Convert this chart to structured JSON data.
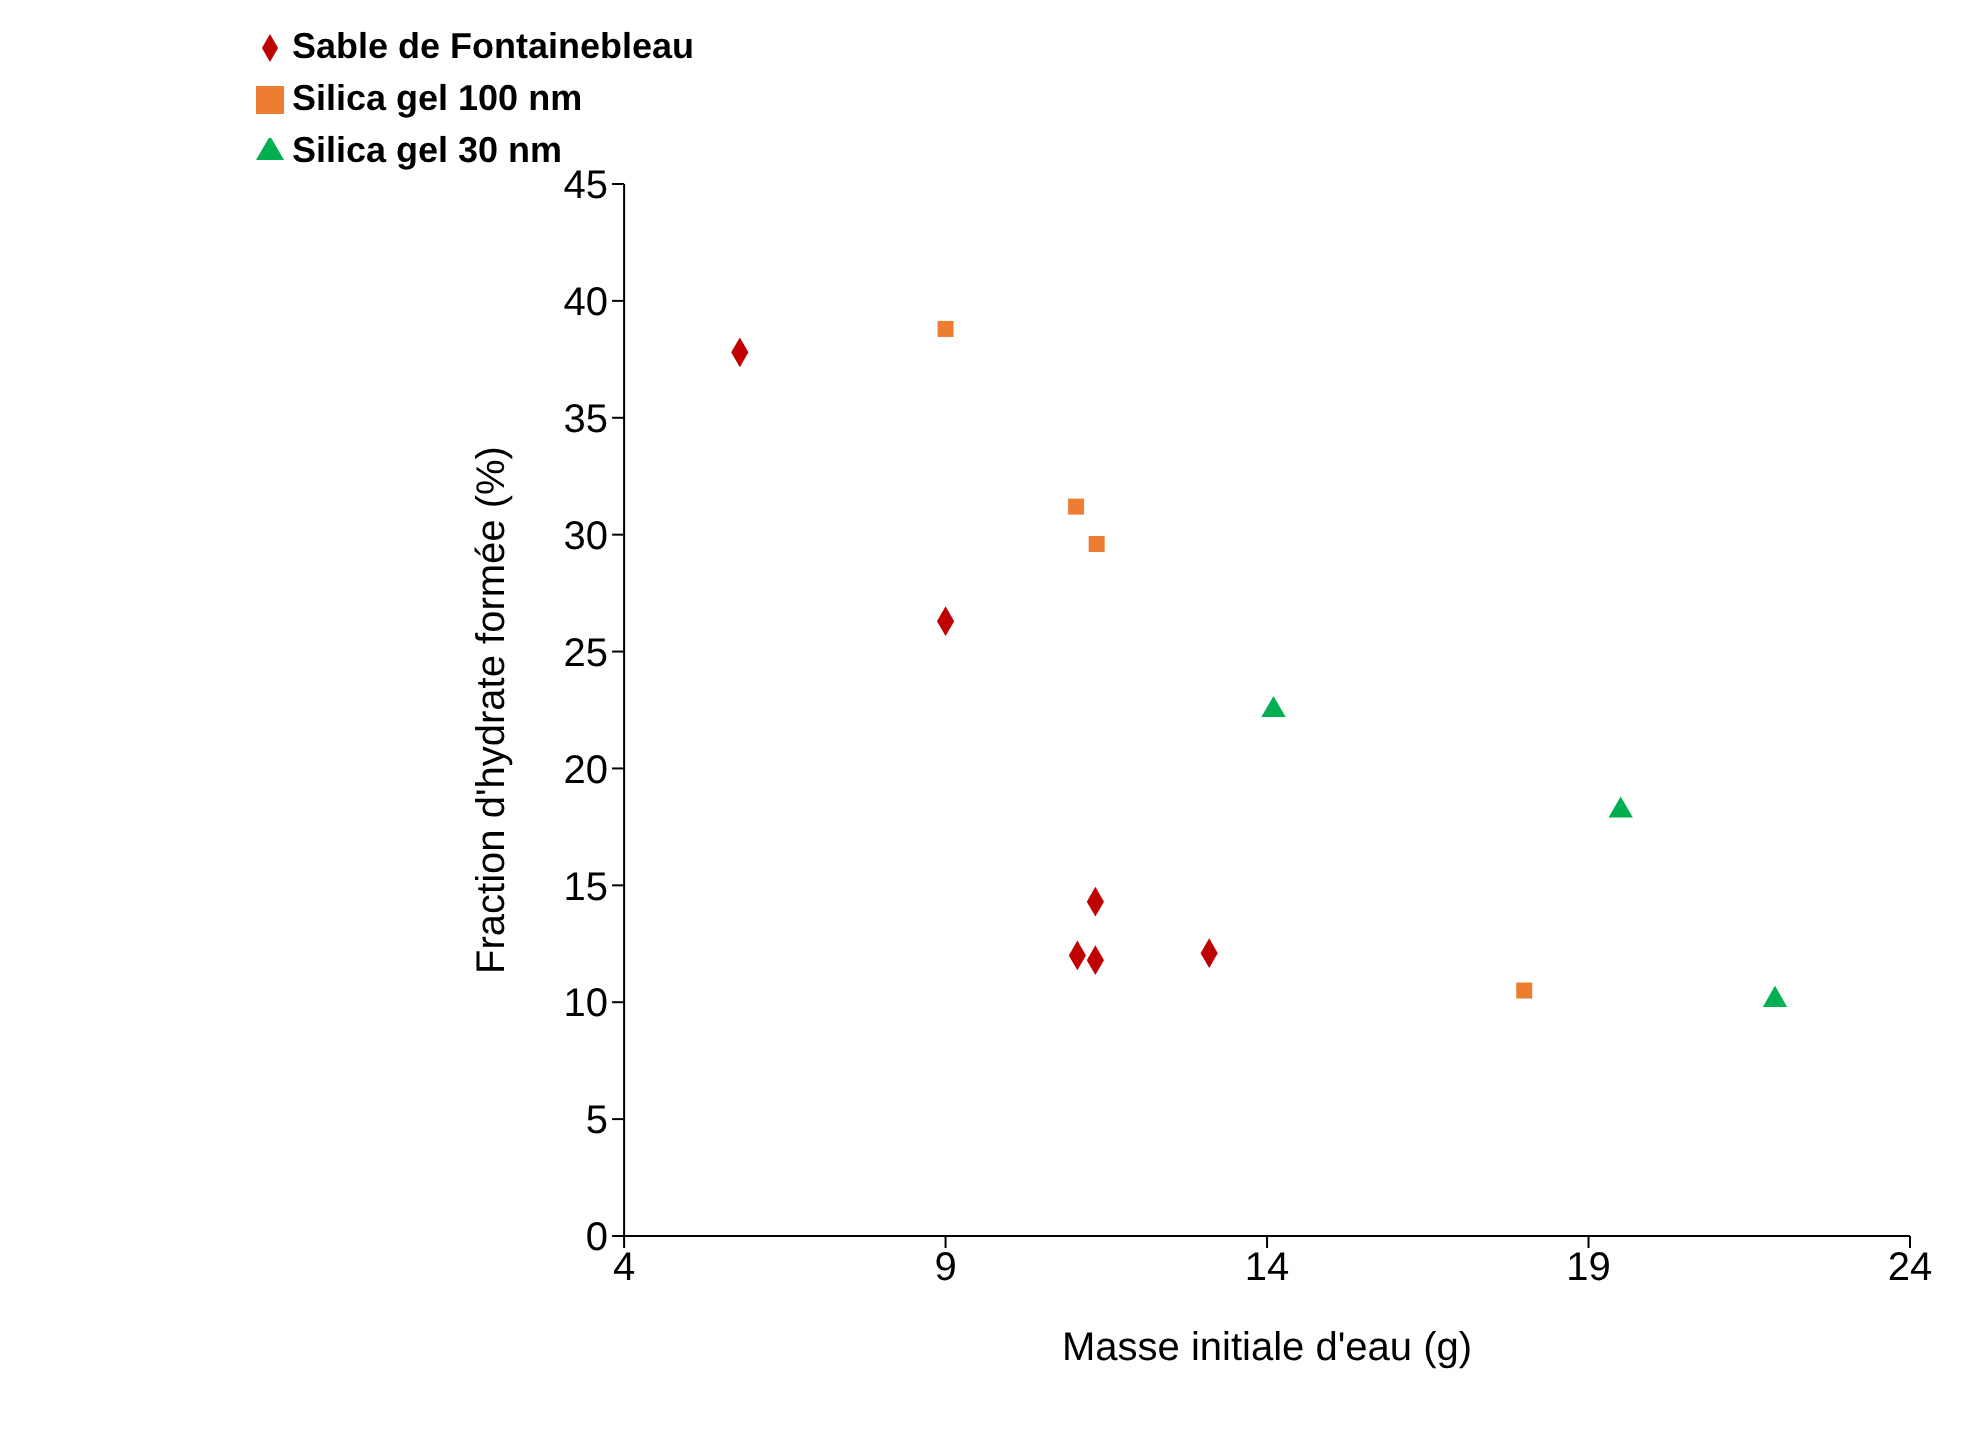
{
  "chart_data": {
    "type": "scatter",
    "xlabel": "Masse initiale d'eau (g)",
    "ylabel": "Fraction d'hydrate formée (%)",
    "xlim": [
      4,
      24
    ],
    "xticks": [
      4,
      9,
      14,
      19,
      24
    ],
    "ylim": [
      0,
      45
    ],
    "yticks": [
      0,
      5,
      10,
      15,
      20,
      25,
      30,
      35,
      40,
      45
    ],
    "grid": false,
    "legend": "top left",
    "series": [
      {
        "name": "Sable de Fontainebleau",
        "color": "#c00000",
        "marker": "diamond",
        "x": [
          5.8,
          9.0,
          11.05,
          11.33,
          11.33,
          13.1
        ],
        "values": [
          37.8,
          26.3,
          12.0,
          11.8,
          14.3,
          12.1
        ]
      },
      {
        "name": "Silica gel 100 nm",
        "color": "#ed7d31",
        "marker": "square",
        "x": [
          9.0,
          11.03,
          11.35,
          18.0
        ],
        "values": [
          38.8,
          31.2,
          29.6,
          10.5
        ]
      },
      {
        "name": "Silica gel 30 nm",
        "color": "#00b050",
        "marker": "triangle",
        "x": [
          14.1,
          19.5,
          21.9
        ],
        "values": [
          22.5,
          18.2,
          10.1
        ]
      }
    ]
  }
}
